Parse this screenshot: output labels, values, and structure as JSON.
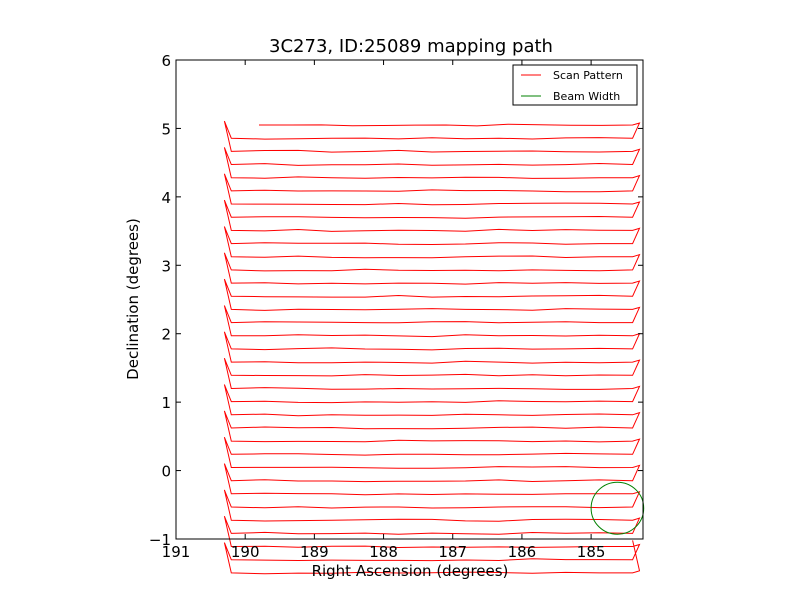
{
  "chart_data": {
    "type": "line",
    "title": "3C273, ID:25089 mapping path",
    "xlabel": "Right Ascension (degrees)",
    "ylabel": "Declination (degrees)",
    "xlim": [
      191.0,
      184.25
    ],
    "ylim": [
      -1,
      6
    ],
    "x_ticks": [
      191,
      190,
      189,
      188,
      187,
      186,
      185
    ],
    "y_ticks": [
      -1,
      0,
      1,
      2,
      3,
      4,
      5,
      6
    ],
    "x_tick_labels": [
      "191",
      "190",
      "189",
      "188",
      "187",
      "186",
      "185"
    ],
    "y_tick_labels": [
      "−1",
      "0",
      "1",
      "2",
      "3",
      "4",
      "5",
      "6"
    ],
    "legend": {
      "position": "top-right",
      "entries": [
        "Scan Pattern",
        "Beam Width"
      ]
    },
    "series": [
      {
        "name": "Scan Pattern",
        "color": "#ff0000",
        "start": [
          189.8,
          5.05
        ],
        "row_spacing": 0.385,
        "row_count": 17,
        "end_dec": -1.02,
        "west_ra": 190.3,
        "east_ra": 184.3,
        "inner_west_ra": 190.2,
        "inner_east_ra": 184.4
      },
      {
        "name": "Beam Width",
        "color": "#008000",
        "center": [
          184.62,
          -0.55
        ],
        "radius_deg": 0.38
      }
    ]
  }
}
